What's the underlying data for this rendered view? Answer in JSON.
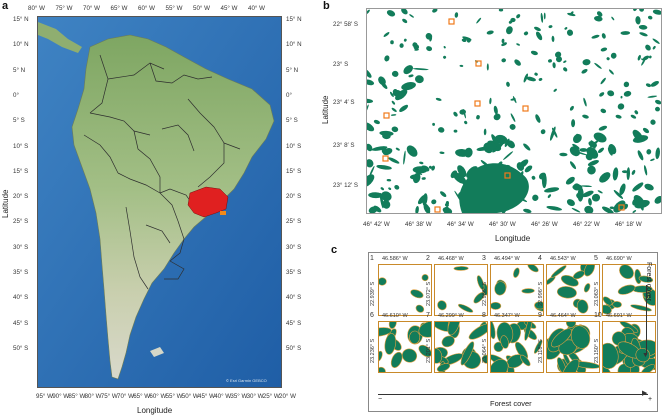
{
  "panel_a": {
    "letter": "a",
    "lat_ticks_left": [
      "15° N",
      "10° N",
      "5° N",
      "0°",
      "5° S",
      "10° S",
      "15° S",
      "20° S",
      "25° S",
      "30° S",
      "35° S",
      "40° S",
      "45° S",
      "50° S"
    ],
    "lat_ticks_right": [
      "15° N",
      "10° N",
      "5° N",
      "0°",
      "5° S",
      "10° S",
      "15° S",
      "20° S",
      "25° S",
      "30° S",
      "35° S",
      "40° S",
      "45° S",
      "50° S"
    ],
    "lon_ticks_top": [
      "80° W",
      "75° W",
      "70° W",
      "65° W",
      "60° W",
      "55° W",
      "50° W",
      "45° W",
      "40° W"
    ],
    "lon_ticks_bottom": [
      "95° W",
      "90° W",
      "85° W",
      "80° W",
      "75° W",
      "70° W",
      "65° W",
      "60° W",
      "55° W",
      "50° W",
      "45° W",
      "40° W",
      "35° W",
      "30° W",
      "25° W",
      "20° W"
    ],
    "xlabel": "Longitude",
    "ylabel": "Latitude",
    "credit": "© Esri  Garmin  GEBCO"
  },
  "panel_b": {
    "letter": "b",
    "lat_ticks": [
      "22° 58′ S",
      "23° S",
      "23° 4′ S",
      "23° 8′ S",
      "23° 12′ S"
    ],
    "lon_ticks": [
      "46° 42′ W",
      "46° 38′ W",
      "46° 34′ W",
      "46° 30′ W",
      "46° 26′ W",
      "46° 22′ W",
      "46° 18′ W"
    ],
    "xlabel": "Longitude",
    "ylabel": "Latitude"
  },
  "panel_c": {
    "letter": "c",
    "side_label": "Forest cover",
    "bottom_label": "Forest cover",
    "minus": "−",
    "plus": "+",
    "thumbs": [
      {
        "num": "1",
        "lon": "46.586° W",
        "lat": "22.939° S"
      },
      {
        "num": "2",
        "lon": "46.468° W",
        "lat": "23.072° S"
      },
      {
        "num": "3",
        "lon": "46.494° W",
        "lat": "22.986° S"
      },
      {
        "num": "4",
        "lon": "46.543° W",
        "lat": "22.996° S"
      },
      {
        "num": "5",
        "lon": "46.690° W",
        "lat": "23.063° S"
      },
      {
        "num": "6",
        "lon": "46.610° W",
        "lat": "23.236° S"
      },
      {
        "num": "7",
        "lon": "46.299° W",
        "lat": "23.201° S"
      },
      {
        "num": "8",
        "lon": "46.347° W",
        "lat": "23.064° S"
      },
      {
        "num": "9",
        "lon": "46.464° W",
        "lat": "23.118° S"
      },
      {
        "num": "10",
        "lon": "46.691° W",
        "lat": "23.150° S"
      }
    ]
  },
  "colors": {
    "ocean": "#2a6fb5",
    "land": "#9dbb83",
    "highlight": "#e02020",
    "forest": "#127c5a",
    "thumb_border": "#c98a2a"
  }
}
